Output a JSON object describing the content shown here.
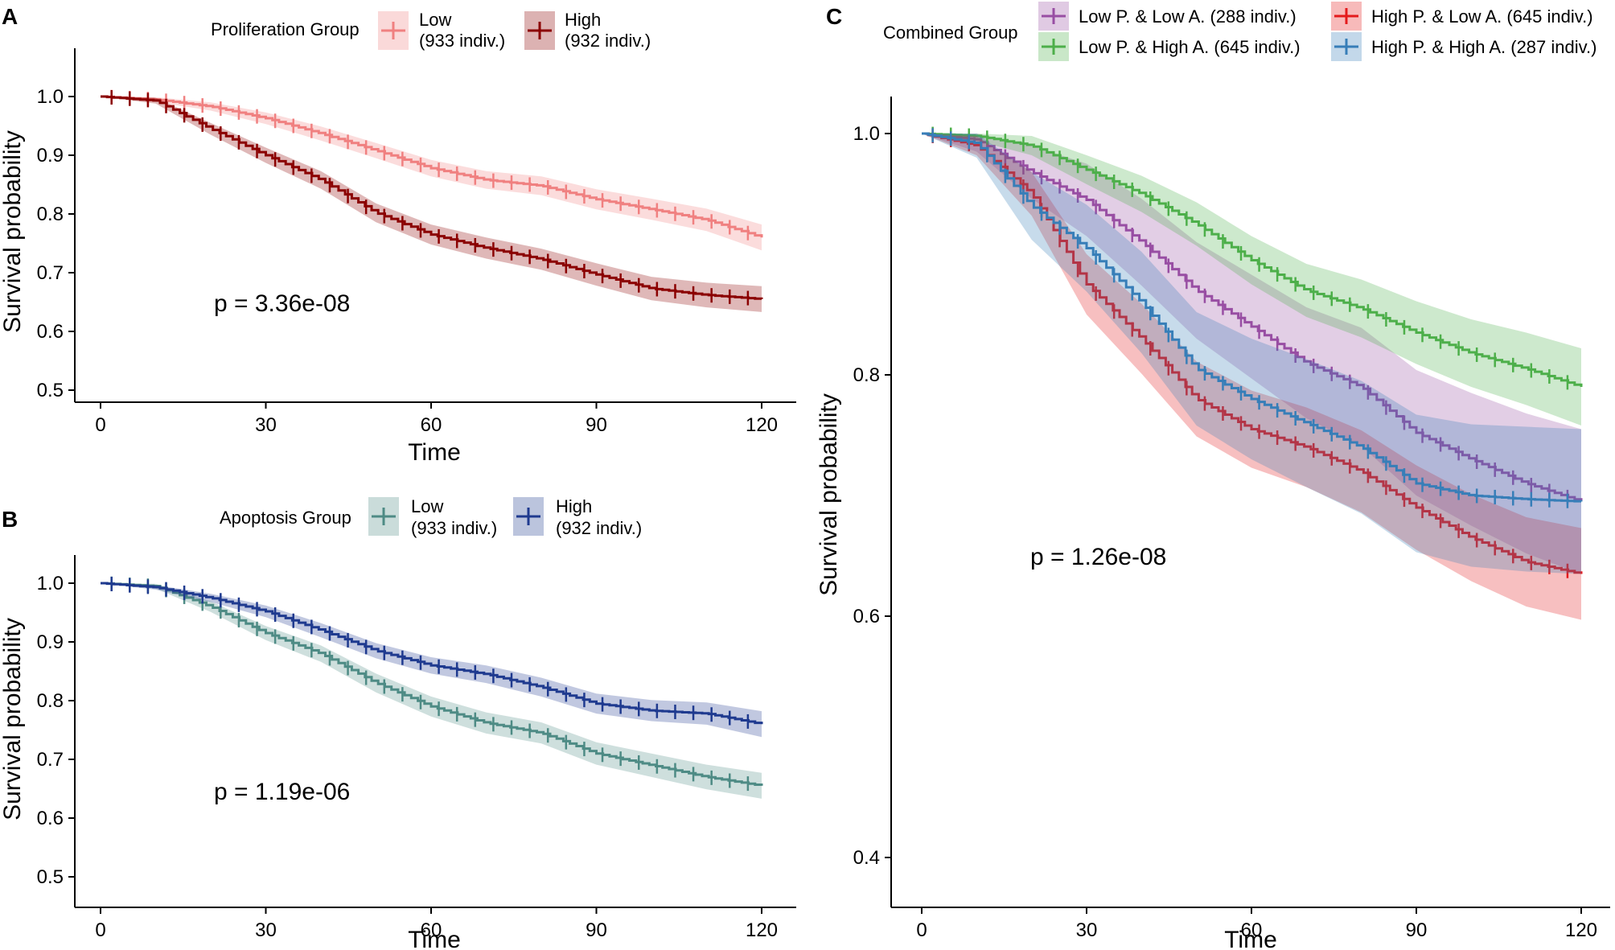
{
  "chart_data": [
    {
      "panel": "A",
      "type": "line",
      "subtype": "kaplan-meier",
      "legend_title": "Proliferation Group",
      "legend_position": "top",
      "xlabel": "Time",
      "ylabel": "Survival probability",
      "xlim": [
        0,
        120
      ],
      "ylim": [
        0.5,
        1.0
      ],
      "xticks": [
        0,
        30,
        60,
        90,
        120
      ],
      "yticks": [
        0.5,
        0.6,
        0.7,
        0.8,
        0.9,
        1.0
      ],
      "xtick_labels": [
        "0",
        "30",
        "60",
        "90",
        "120"
      ],
      "ytick_labels": [
        "0.5",
        "0.6",
        "0.7",
        "0.8",
        "0.9",
        "1.0"
      ],
      "annotation": "p = 3.36e-08",
      "series": [
        {
          "name": "Low",
          "label_line1": "Low",
          "label_line2": "(933 indiv.)",
          "color": "#F08080",
          "x": [
            0,
            10,
            20,
            30,
            40,
            50,
            60,
            70,
            80,
            90,
            100,
            110,
            120
          ],
          "y": [
            1.0,
            0.995,
            0.983,
            0.963,
            0.937,
            0.908,
            0.878,
            0.858,
            0.848,
            0.825,
            0.808,
            0.79,
            0.76
          ],
          "ci_halfwidth": [
            0,
            0.004,
            0.007,
            0.01,
            0.012,
            0.013,
            0.014,
            0.015,
            0.016,
            0.017,
            0.018,
            0.019,
            0.022
          ]
        },
        {
          "name": "High",
          "label_line1": "High",
          "label_line2": "(932 indiv.)",
          "color": "#8B0000",
          "x": [
            0,
            10,
            20,
            30,
            40,
            50,
            60,
            70,
            80,
            90,
            100,
            110,
            120
          ],
          "y": [
            1.0,
            0.993,
            0.945,
            0.9,
            0.858,
            0.802,
            0.765,
            0.742,
            0.723,
            0.697,
            0.673,
            0.662,
            0.655
          ],
          "ci_halfwidth": [
            0,
            0.005,
            0.01,
            0.013,
            0.015,
            0.016,
            0.017,
            0.018,
            0.018,
            0.019,
            0.02,
            0.021,
            0.022
          ]
        }
      ]
    },
    {
      "panel": "B",
      "type": "line",
      "subtype": "kaplan-meier",
      "legend_title": "Apoptosis Group",
      "legend_position": "top",
      "xlabel": "Time",
      "ylabel": "Survival probability",
      "xlim": [
        0,
        120
      ],
      "ylim": [
        0.5,
        1.0
      ],
      "xticks": [
        0,
        30,
        60,
        90,
        120
      ],
      "yticks": [
        0.5,
        0.6,
        0.7,
        0.8,
        0.9,
        1.0
      ],
      "xtick_labels": [
        "0",
        "30",
        "60",
        "90",
        "120"
      ],
      "ytick_labels": [
        "0.5",
        "0.6",
        "0.7",
        "0.8",
        "0.9",
        "1.0"
      ],
      "annotation": "p = 1.19e-06",
      "series": [
        {
          "name": "Low",
          "label_line1": "Low",
          "label_line2": "(933 indiv.)",
          "color": "#4E8B85",
          "x": [
            0,
            10,
            20,
            30,
            40,
            50,
            60,
            70,
            80,
            90,
            100,
            110,
            120
          ],
          "y": [
            1.0,
            0.995,
            0.96,
            0.915,
            0.88,
            0.83,
            0.79,
            0.762,
            0.745,
            0.71,
            0.69,
            0.67,
            0.655
          ],
          "ci_halfwidth": [
            0,
            0.004,
            0.009,
            0.012,
            0.014,
            0.016,
            0.017,
            0.018,
            0.018,
            0.019,
            0.02,
            0.021,
            0.022
          ]
        },
        {
          "name": "High",
          "label_line1": "High",
          "label_line2": "(932 indiv.)",
          "color": "#1F3A8F",
          "x": [
            0,
            10,
            20,
            30,
            40,
            50,
            60,
            70,
            80,
            90,
            100,
            110,
            120
          ],
          "y": [
            1.0,
            0.993,
            0.975,
            0.952,
            0.92,
            0.885,
            0.86,
            0.845,
            0.823,
            0.795,
            0.783,
            0.778,
            0.76
          ],
          "ci_halfwidth": [
            0,
            0.004,
            0.007,
            0.01,
            0.012,
            0.013,
            0.014,
            0.015,
            0.016,
            0.017,
            0.018,
            0.019,
            0.022
          ]
        }
      ]
    },
    {
      "panel": "C",
      "type": "line",
      "subtype": "kaplan-meier",
      "legend_title": "Combined Group",
      "legend_position": "top",
      "xlabel": "Time",
      "ylabel": "Survival probability",
      "xlim": [
        0,
        120
      ],
      "ylim": [
        0.4,
        1.0
      ],
      "xticks": [
        0,
        30,
        60,
        90,
        120
      ],
      "yticks": [
        0.4,
        0.6,
        0.8,
        1.0
      ],
      "xtick_labels": [
        "0",
        "30",
        "60",
        "90",
        "120"
      ],
      "ytick_labels": [
        "0.4",
        "0.6",
        "0.8",
        "1.0"
      ],
      "annotation": "p = 1.26e-08",
      "series": [
        {
          "name": "Low P. & Low A. (288 indiv.)",
          "label_line1": "Low P. & Low A. (288 indiv.)",
          "color": "#984EA3",
          "x": [
            0,
            10,
            20,
            30,
            40,
            50,
            60,
            70,
            80,
            90,
            100,
            110,
            120
          ],
          "y": [
            1.0,
            0.995,
            0.968,
            0.945,
            0.91,
            0.87,
            0.84,
            0.81,
            0.79,
            0.752,
            0.73,
            0.71,
            0.695
          ],
          "ci_halfwidth": [
            0,
            0.01,
            0.022,
            0.03,
            0.036,
            0.04,
            0.043,
            0.046,
            0.049,
            0.052,
            0.055,
            0.058,
            0.06
          ]
        },
        {
          "name": "Low P. & High A. (645 indiv.)",
          "label_line1": "Low P. & High A. (645 indiv.)",
          "color": "#4DAF4A",
          "x": [
            0,
            10,
            20,
            30,
            40,
            50,
            60,
            70,
            80,
            90,
            100,
            110,
            120
          ],
          "y": [
            1.0,
            0.998,
            0.99,
            0.97,
            0.95,
            0.925,
            0.895,
            0.87,
            0.855,
            0.835,
            0.818,
            0.805,
            0.79
          ],
          "ci_halfwidth": [
            0,
            0.004,
            0.008,
            0.012,
            0.015,
            0.018,
            0.02,
            0.022,
            0.024,
            0.026,
            0.028,
            0.03,
            0.032
          ]
        },
        {
          "name": "High P. & Low A. (645 indiv.)",
          "label_line1": "High P. & Low A. (645 indiv.)",
          "color": "#E41A1C",
          "x": [
            0,
            10,
            20,
            30,
            40,
            50,
            60,
            70,
            80,
            90,
            100,
            110,
            120
          ],
          "y": [
            1.0,
            0.99,
            0.95,
            0.875,
            0.83,
            0.78,
            0.755,
            0.74,
            0.72,
            0.69,
            0.665,
            0.645,
            0.635
          ],
          "ci_halfwidth": [
            0,
            0.008,
            0.018,
            0.025,
            0.029,
            0.031,
            0.032,
            0.033,
            0.034,
            0.035,
            0.036,
            0.037,
            0.038
          ]
        },
        {
          "name": "High P. & High A. (287 indiv.)",
          "label_line1": "High P. & High A. (287 indiv.)",
          "color": "#377EB8",
          "x": [
            0,
            10,
            20,
            30,
            40,
            50,
            60,
            70,
            80,
            90,
            100,
            110,
            120
          ],
          "y": [
            1.0,
            0.992,
            0.94,
            0.905,
            0.86,
            0.805,
            0.78,
            0.76,
            0.74,
            0.71,
            0.7,
            0.697,
            0.695
          ],
          "ci_halfwidth": [
            0,
            0.012,
            0.028,
            0.036,
            0.042,
            0.047,
            0.05,
            0.053,
            0.055,
            0.057,
            0.059,
            0.06,
            0.06
          ]
        }
      ]
    }
  ]
}
